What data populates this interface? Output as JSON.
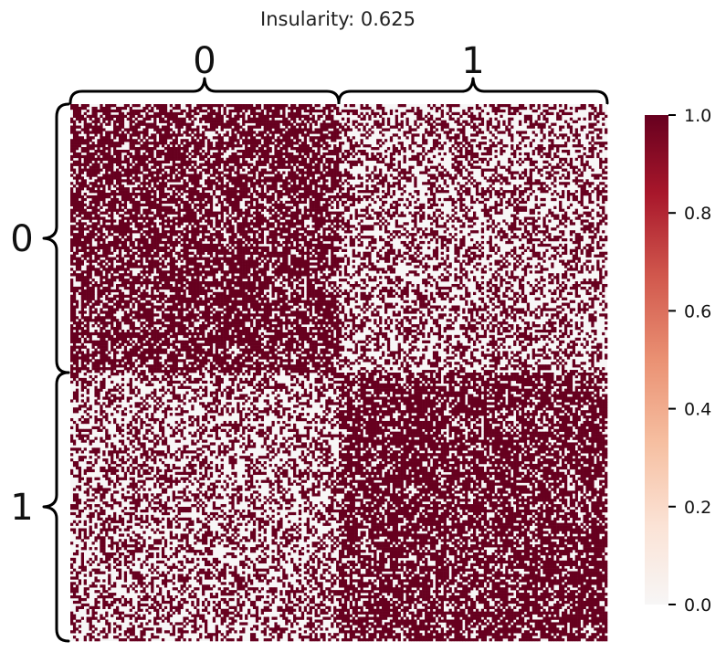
{
  "chart_data": {
    "type": "heatmap",
    "title": "Insularity: 0.625",
    "blocks": [
      "0",
      "1"
    ],
    "matrix_size": 200,
    "block_sizes": [
      100,
      100
    ],
    "block_density": [
      [
        0.7,
        0.4
      ],
      [
        0.4,
        0.7
      ]
    ],
    "values_domain": [
      0,
      1
    ],
    "colorbar": {
      "ticks": [
        0.0,
        0.2,
        0.4,
        0.6,
        0.8,
        1.0
      ],
      "tick_labels": [
        "0.0",
        "0.2",
        "0.4",
        "0.6",
        "0.8",
        "1.0"
      ],
      "colors": [
        "#f7f6f6",
        "#fbe3d6",
        "#f6bfa1",
        "#ea9173",
        "#d1584d",
        "#a8172b",
        "#67001f"
      ]
    },
    "grid": false
  }
}
